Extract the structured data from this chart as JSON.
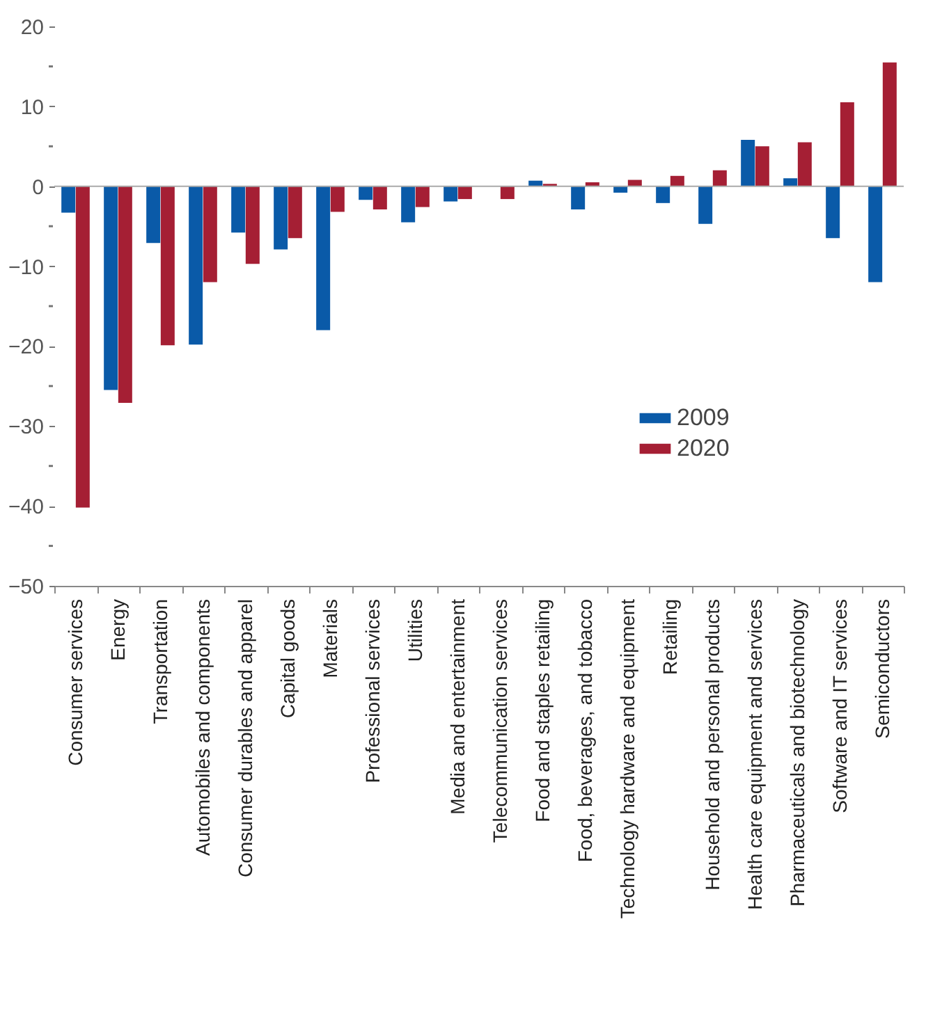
{
  "chart_data": {
    "type": "bar",
    "categories": [
      "Consumer services",
      "Energy",
      "Transportation",
      "Automobiles and components",
      "Consumer durables and apparel",
      "Capital goods",
      "Materials",
      "Professional services",
      "Utilities",
      "Media and entertainment",
      "Telecommunication services",
      "Food and staples retailing",
      "Food, beverages, and tobacco",
      "Technology hardware and equipment",
      "Retailing",
      "Household and personal products",
      "Health care equipment and services",
      "Pharmaceuticals and biotechnology",
      "Software and IT services",
      "Semiconductors"
    ],
    "series": [
      {
        "name": "2009",
        "color": "#0a5aa8",
        "values": [
          -3.3,
          -25.5,
          -7.1,
          -19.8,
          -5.8,
          -7.9,
          -18.0,
          -1.7,
          -4.5,
          -1.9,
          null,
          0.7,
          -2.9,
          -0.8,
          -2.1,
          -4.7,
          5.8,
          1.0,
          -6.5,
          -12.0
        ]
      },
      {
        "name": "2020",
        "color": "#a51f34",
        "values": [
          -40.2,
          -27.1,
          -19.9,
          -12.0,
          -9.7,
          -6.5,
          -3.2,
          -2.9,
          -2.6,
          -1.6,
          -1.6,
          0.3,
          0.5,
          0.8,
          1.3,
          2.0,
          5.0,
          5.5,
          10.5,
          15.5
        ]
      }
    ],
    "ylim": [
      -50,
      20
    ],
    "yticks": [
      -50,
      {
        "value": -45,
        "label": null
      },
      -40,
      {
        "value": -35,
        "label": null
      },
      -30,
      {
        "value": -25,
        "label": null
      },
      -20,
      {
        "value": -15,
        "label": null
      },
      -10,
      {
        "value": -5,
        "label": null
      },
      0,
      {
        "value": 5,
        "label": null
      },
      10,
      {
        "value": 15,
        "label": null
      },
      20
    ],
    "legend": "right"
  }
}
